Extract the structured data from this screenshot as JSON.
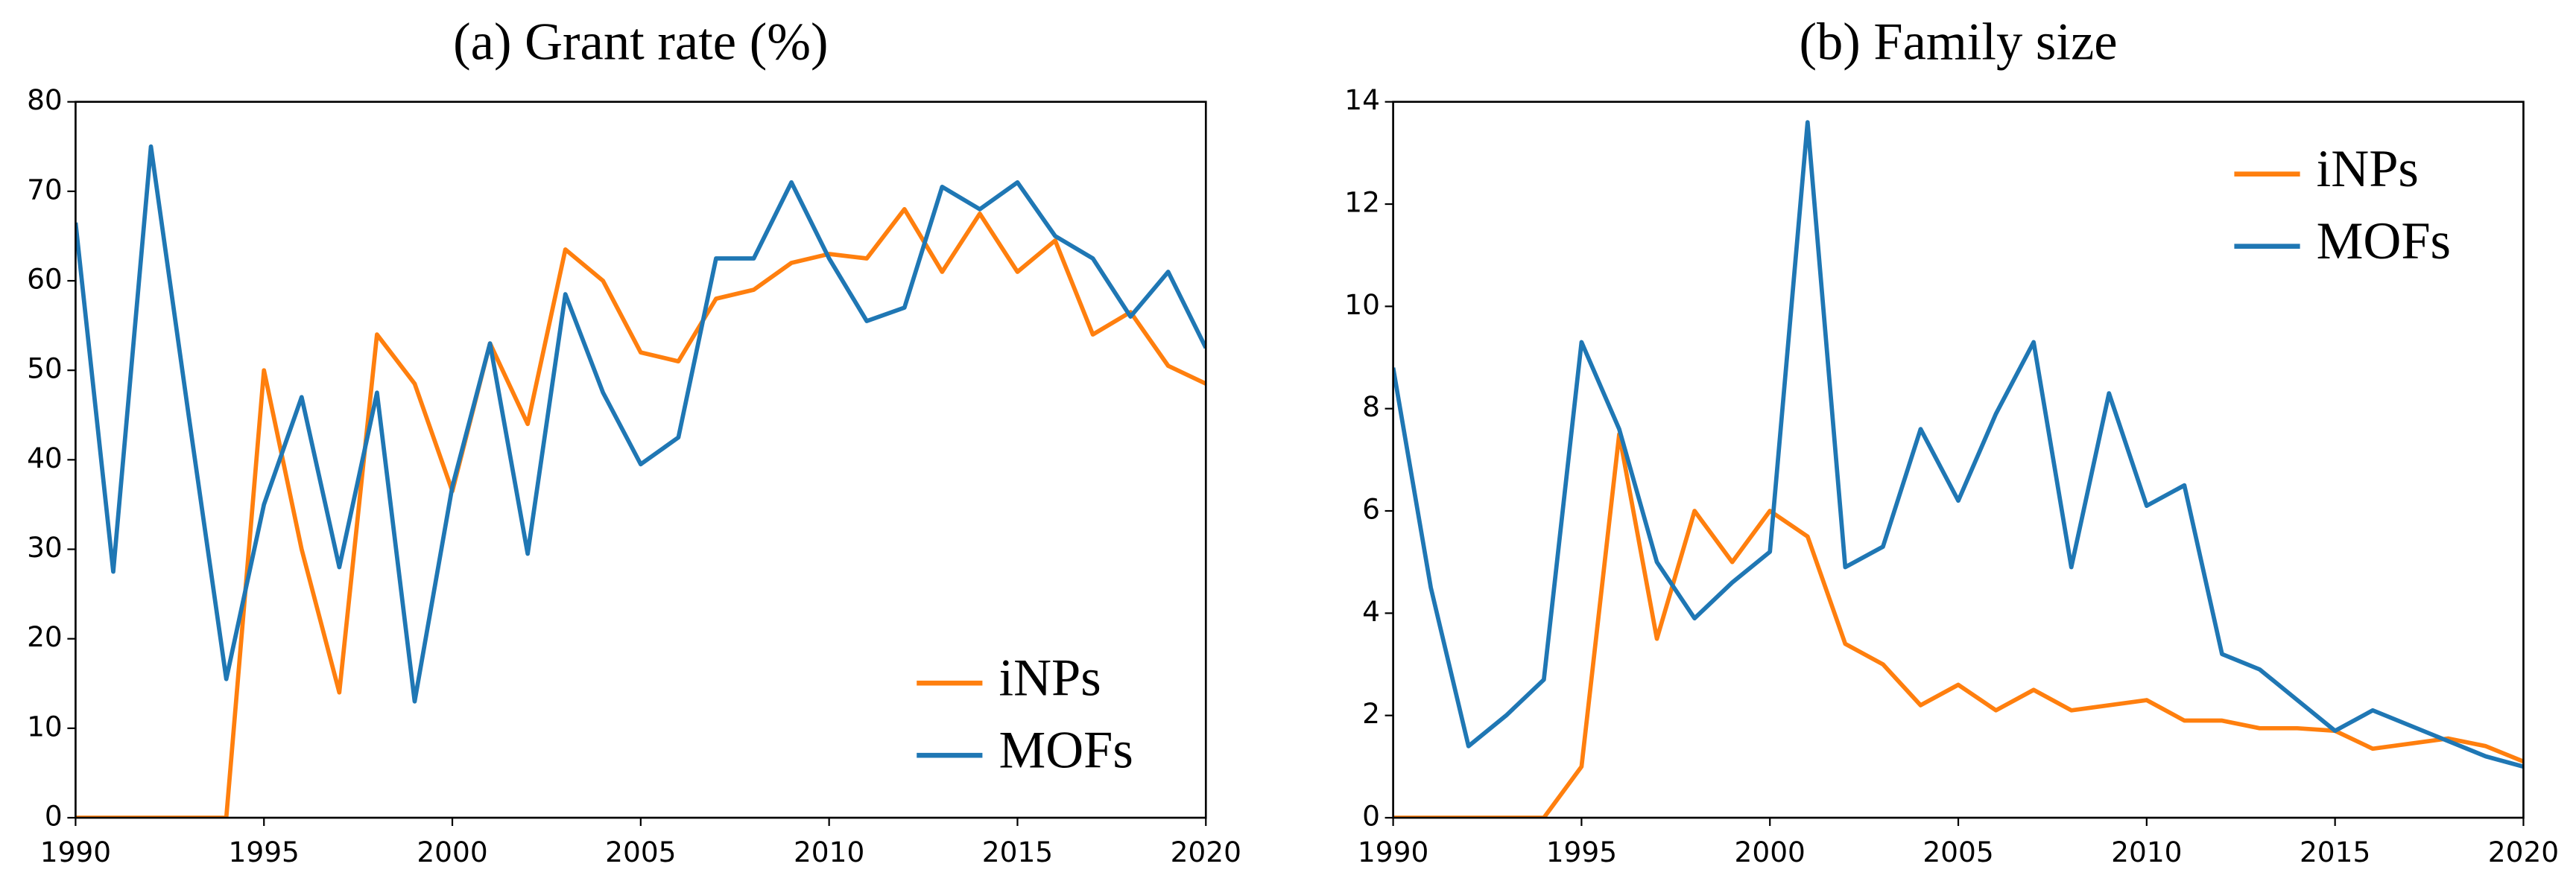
{
  "chart_data": [
    {
      "type": "line",
      "title": "(a) Grant rate (%)",
      "x": [
        1990,
        1991,
        1992,
        1993,
        1994,
        1995,
        1996,
        1997,
        1998,
        1999,
        2000,
        2001,
        2002,
        2003,
        2004,
        2005,
        2006,
        2007,
        2008,
        2009,
        2010,
        2011,
        2012,
        2013,
        2014,
        2015,
        2016,
        2017,
        2018,
        2019,
        2020
      ],
      "series": [
        {
          "name": "iNPs",
          "color": "#ff7f0e",
          "values": [
            0,
            0,
            0,
            0,
            0,
            50,
            30,
            14,
            54,
            48.5,
            36.5,
            53,
            44,
            63.5,
            60,
            52,
            51,
            58,
            59,
            62,
            63,
            62.5,
            68,
            61,
            67.5,
            61,
            64.5,
            54,
            56.5,
            50.5,
            48.5
          ]
        },
        {
          "name": "MOFs",
          "color": "#1f77b4",
          "values": [
            66.5,
            27.5,
            75,
            45,
            15.5,
            35,
            47,
            28,
            47.5,
            13,
            37,
            53,
            29.5,
            58.5,
            47.5,
            39.5,
            42.5,
            62.5,
            62.5,
            71,
            62.5,
            55.5,
            57,
            70.5,
            68,
            71,
            65,
            62.5,
            56,
            61,
            52.5
          ]
        }
      ],
      "xlim": [
        1990,
        2020
      ],
      "xticks": [
        1990,
        1995,
        2000,
        2005,
        2010,
        2015,
        2020
      ],
      "ylim": [
        0,
        80
      ],
      "yticks": [
        0,
        10,
        20,
        30,
        40,
        50,
        60,
        70,
        80
      ],
      "legend": "lower right"
    },
    {
      "type": "line",
      "title": "(b) Family size",
      "x": [
        1990,
        1991,
        1992,
        1993,
        1994,
        1995,
        1996,
        1997,
        1998,
        1999,
        2000,
        2001,
        2002,
        2003,
        2004,
        2005,
        2006,
        2007,
        2008,
        2009,
        2010,
        2011,
        2012,
        2013,
        2014,
        2015,
        2016,
        2017,
        2018,
        2019,
        2020
      ],
      "series": [
        {
          "name": "iNPs",
          "color": "#ff7f0e",
          "values": [
            0,
            0,
            0,
            0,
            0,
            1,
            7.5,
            3.5,
            6,
            5,
            6,
            5.5,
            3.4,
            3,
            2.2,
            2.6,
            2.1,
            2.5,
            2.1,
            2.2,
            2.3,
            1.9,
            1.9,
            1.75,
            1.75,
            1.7,
            1.35,
            1.45,
            1.55,
            1.4,
            1.1
          ]
        },
        {
          "name": "MOFs",
          "color": "#1f77b4",
          "values": [
            8.8,
            4.5,
            1.4,
            2,
            2.7,
            9.3,
            7.6,
            5,
            3.9,
            4.6,
            5.2,
            13.6,
            4.9,
            5.3,
            7.6,
            6.2,
            7.9,
            9.3,
            4.9,
            8.3,
            6.1,
            6.5,
            3.2,
            2.9,
            2.3,
            1.7,
            2.1,
            1.8,
            1.5,
            1.2,
            1
          ]
        }
      ],
      "xlim": [
        1990,
        2020
      ],
      "xticks": [
        1990,
        1995,
        2000,
        2005,
        2010,
        2015,
        2020
      ],
      "ylim": [
        0,
        14
      ],
      "yticks": [
        0,
        2,
        4,
        6,
        8,
        10,
        12,
        14
      ],
      "legend": "upper right"
    }
  ]
}
